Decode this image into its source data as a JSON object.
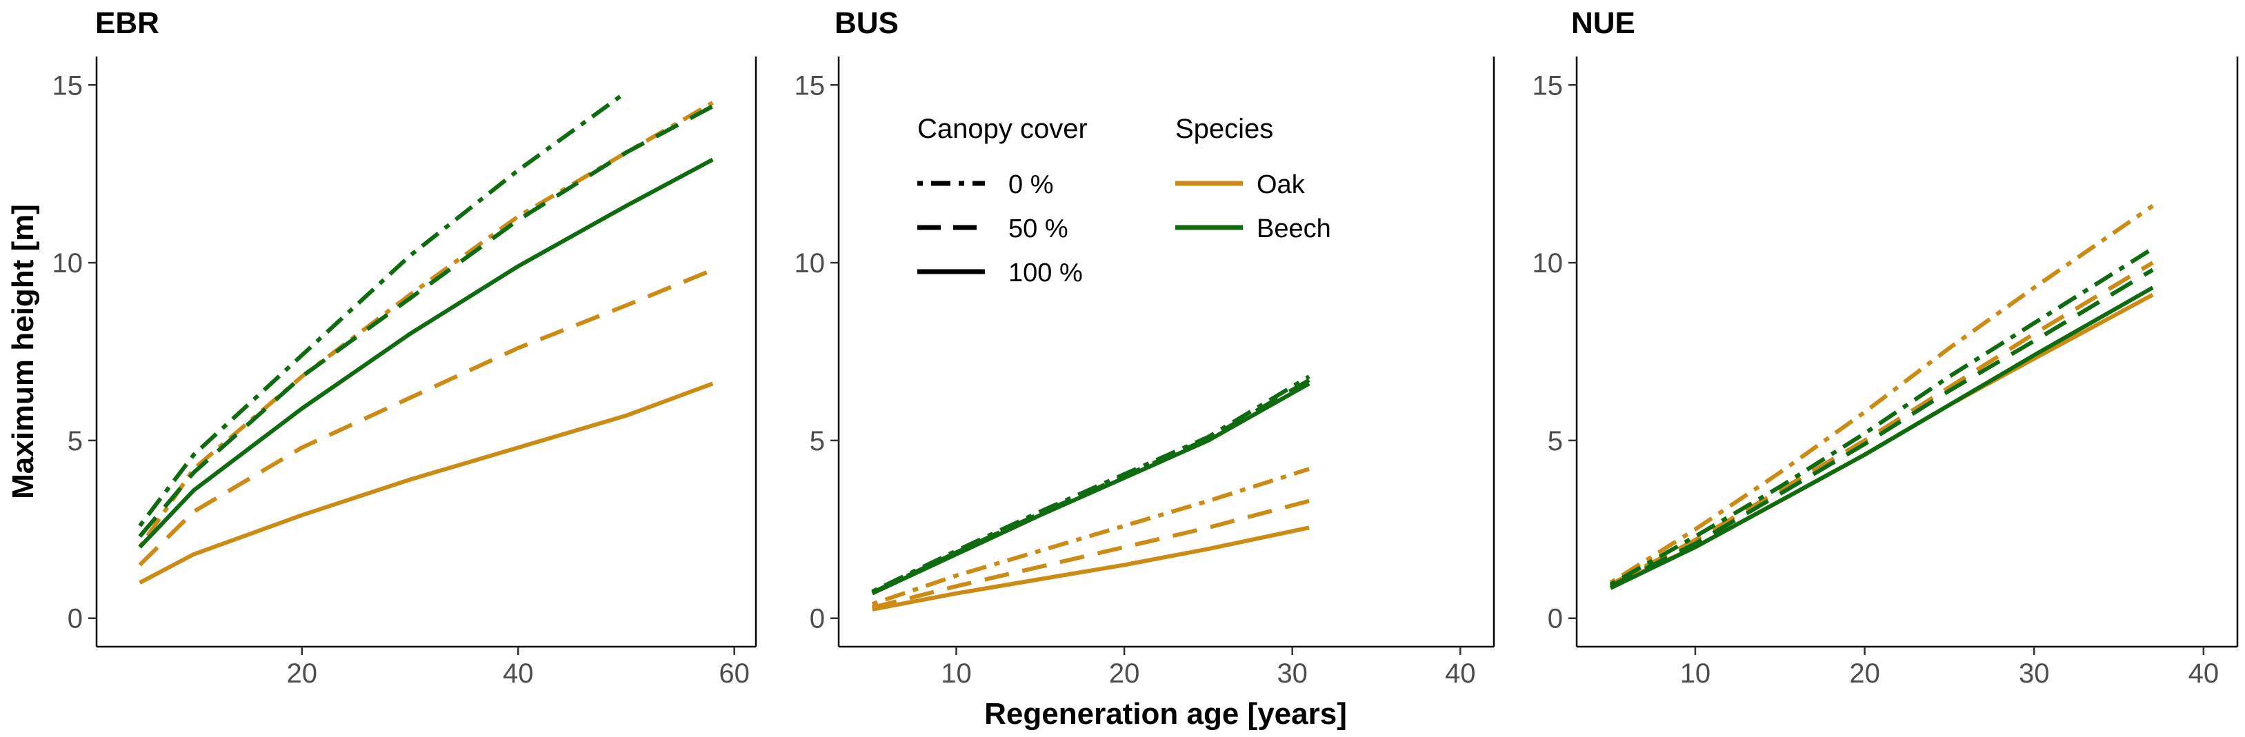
{
  "chart_data": {
    "type": "line",
    "ylabel": "Maximum height [m]",
    "xlabel": "Regeneration age [years]",
    "legend": {
      "canopy_title": "Canopy cover",
      "species_title": "Species",
      "canopy": [
        {
          "key": "0",
          "label": "0 %",
          "dash": "dotdash"
        },
        {
          "key": "50",
          "label": "50 %",
          "dash": "dashed"
        },
        {
          "key": "100",
          "label": "100 %",
          "dash": "solid"
        }
      ],
      "species": [
        {
          "key": "oak",
          "label": "Oak",
          "color": "#cc8b14"
        },
        {
          "key": "beech",
          "label": "Beech",
          "color": "#0f6b10"
        }
      ]
    },
    "panels": [
      {
        "title": "EBR",
        "xlim": [
          1,
          62
        ],
        "ylim": [
          -0.8,
          15.8
        ],
        "xticks": [
          20,
          40,
          60
        ],
        "yticks": [
          0,
          5,
          10,
          15
        ],
        "x": [
          5,
          10,
          20,
          30,
          40,
          50,
          58
        ],
        "series": [
          {
            "species": "oak",
            "canopy": "100",
            "y": [
              1.0,
              1.8,
              2.9,
              3.9,
              4.8,
              5.7,
              6.6
            ]
          },
          {
            "species": "oak",
            "canopy": "50",
            "y": [
              1.5,
              3.0,
              4.8,
              6.2,
              7.6,
              8.8,
              9.8
            ]
          },
          {
            "species": "oak",
            "canopy": "0",
            "y": [
              2.0,
              4.2,
              6.8,
              9.1,
              11.3,
              13.1,
              14.5
            ]
          },
          {
            "species": "beech",
            "canopy": "100",
            "y": [
              2.0,
              3.6,
              5.9,
              8.0,
              9.9,
              11.6,
              12.9
            ]
          },
          {
            "species": "beech",
            "canopy": "50",
            "y": [
              2.3,
              4.1,
              6.8,
              9.0,
              11.2,
              13.1,
              14.4
            ]
          },
          {
            "species": "beech",
            "canopy": "0",
            "y": [
              2.6,
              4.6,
              7.4,
              10.2,
              12.6,
              14.8
            ]
          }
        ]
      },
      {
        "title": "BUS",
        "xlim": [
          3,
          42
        ],
        "ylim": [
          -0.8,
          15.8
        ],
        "xticks": [
          10,
          20,
          30,
          40
        ],
        "yticks": [
          0,
          5,
          10,
          15
        ],
        "x": [
          5,
          10,
          15,
          20,
          25,
          31
        ],
        "series": [
          {
            "species": "oak",
            "canopy": "100",
            "y": [
              0.25,
              0.7,
              1.1,
              1.5,
              1.95,
              2.55
            ]
          },
          {
            "species": "oak",
            "canopy": "50",
            "y": [
              0.3,
              0.9,
              1.45,
              2.0,
              2.55,
              3.3
            ]
          },
          {
            "species": "oak",
            "canopy": "0",
            "y": [
              0.4,
              1.2,
              1.9,
              2.6,
              3.3,
              4.2
            ]
          },
          {
            "species": "beech",
            "canopy": "100",
            "y": [
              0.7,
              1.8,
              2.9,
              3.95,
              5.0,
              6.6
            ]
          },
          {
            "species": "beech",
            "canopy": "50",
            "y": [
              0.72,
              1.85,
              2.95,
              4.0,
              5.05,
              6.7
            ]
          },
          {
            "species": "beech",
            "canopy": "0",
            "y": [
              0.75,
              1.9,
              3.0,
              4.05,
              5.1,
              6.8
            ]
          }
        ]
      },
      {
        "title": "NUE",
        "xlim": [
          3,
          42
        ],
        "ylim": [
          -0.8,
          15.8
        ],
        "xticks": [
          10,
          20,
          30,
          40
        ],
        "yticks": [
          0,
          5,
          10,
          15
        ],
        "x": [
          5,
          10,
          15,
          20,
          25,
          30,
          37
        ],
        "series": [
          {
            "species": "oak",
            "canopy": "100",
            "y": [
              0.9,
              2.0,
              3.3,
              4.6,
              6.0,
              7.3,
              9.1
            ]
          },
          {
            "species": "oak",
            "canopy": "50",
            "y": [
              0.95,
              2.2,
              3.6,
              5.0,
              6.5,
              8.0,
              10.0
            ]
          },
          {
            "species": "oak",
            "canopy": "0",
            "y": [
              1.0,
              2.5,
              4.1,
              5.8,
              7.6,
              9.3,
              11.6
            ]
          },
          {
            "species": "beech",
            "canopy": "100",
            "y": [
              0.85,
              2.0,
              3.3,
              4.6,
              6.0,
              7.4,
              9.3
            ]
          },
          {
            "species": "beech",
            "canopy": "50",
            "y": [
              0.9,
              2.1,
              3.5,
              4.9,
              6.4,
              7.8,
              9.8
            ]
          },
          {
            "species": "beech",
            "canopy": "0",
            "y": [
              0.95,
              2.3,
              3.7,
              5.2,
              6.8,
              8.3,
              10.4
            ]
          }
        ]
      }
    ]
  }
}
